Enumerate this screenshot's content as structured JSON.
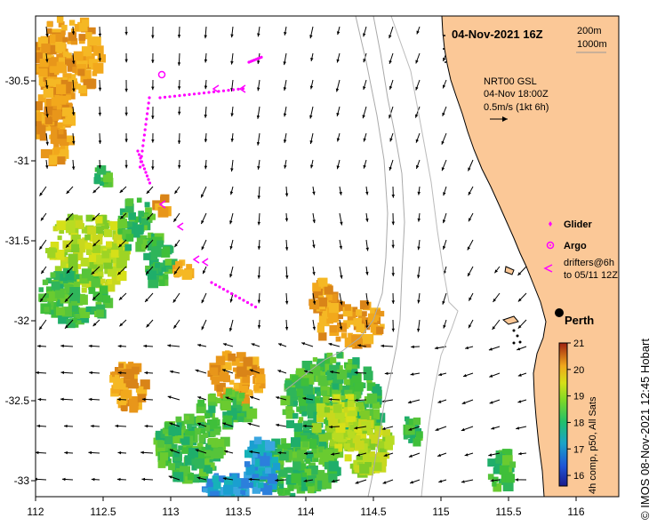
{
  "map": {
    "title": "04-Nov-2021 16Z",
    "contour_legend": [
      "200m",
      "1000m"
    ],
    "current_info": [
      "NRT00 GSL",
      "04-Nov 18:00Z",
      "0.5m/s (1kt 6h)"
    ],
    "place": "Perth",
    "x_ticks": [
      "112",
      "112.5",
      "113",
      "113.5",
      "114",
      "114.5",
      "115",
      "115.5",
      "116"
    ],
    "y_ticks": [
      "-30.5",
      "-31",
      "-31.5",
      "-32",
      "-32.5",
      "-33"
    ],
    "colors": {
      "land": "#fbc897",
      "glider": "#ff00ff",
      "argo": "#ff00ff",
      "drifter": "#ff00ff",
      "isobath": "#999999"
    }
  },
  "legend": {
    "glider_label": "Glider",
    "argo_label": "Argo",
    "drifters_line1": "drifters@6h",
    "drifters_line2": "to 05/11 12Z"
  },
  "colorbar": {
    "ticks": [
      "21",
      "20",
      "19",
      "18",
      "17",
      "16"
    ],
    "label": "4h comp, p50, All Sats",
    "range": [
      15.6,
      21
    ]
  },
  "credit": "© IMOS 08-Nov-2021 12:45 Hobart"
}
